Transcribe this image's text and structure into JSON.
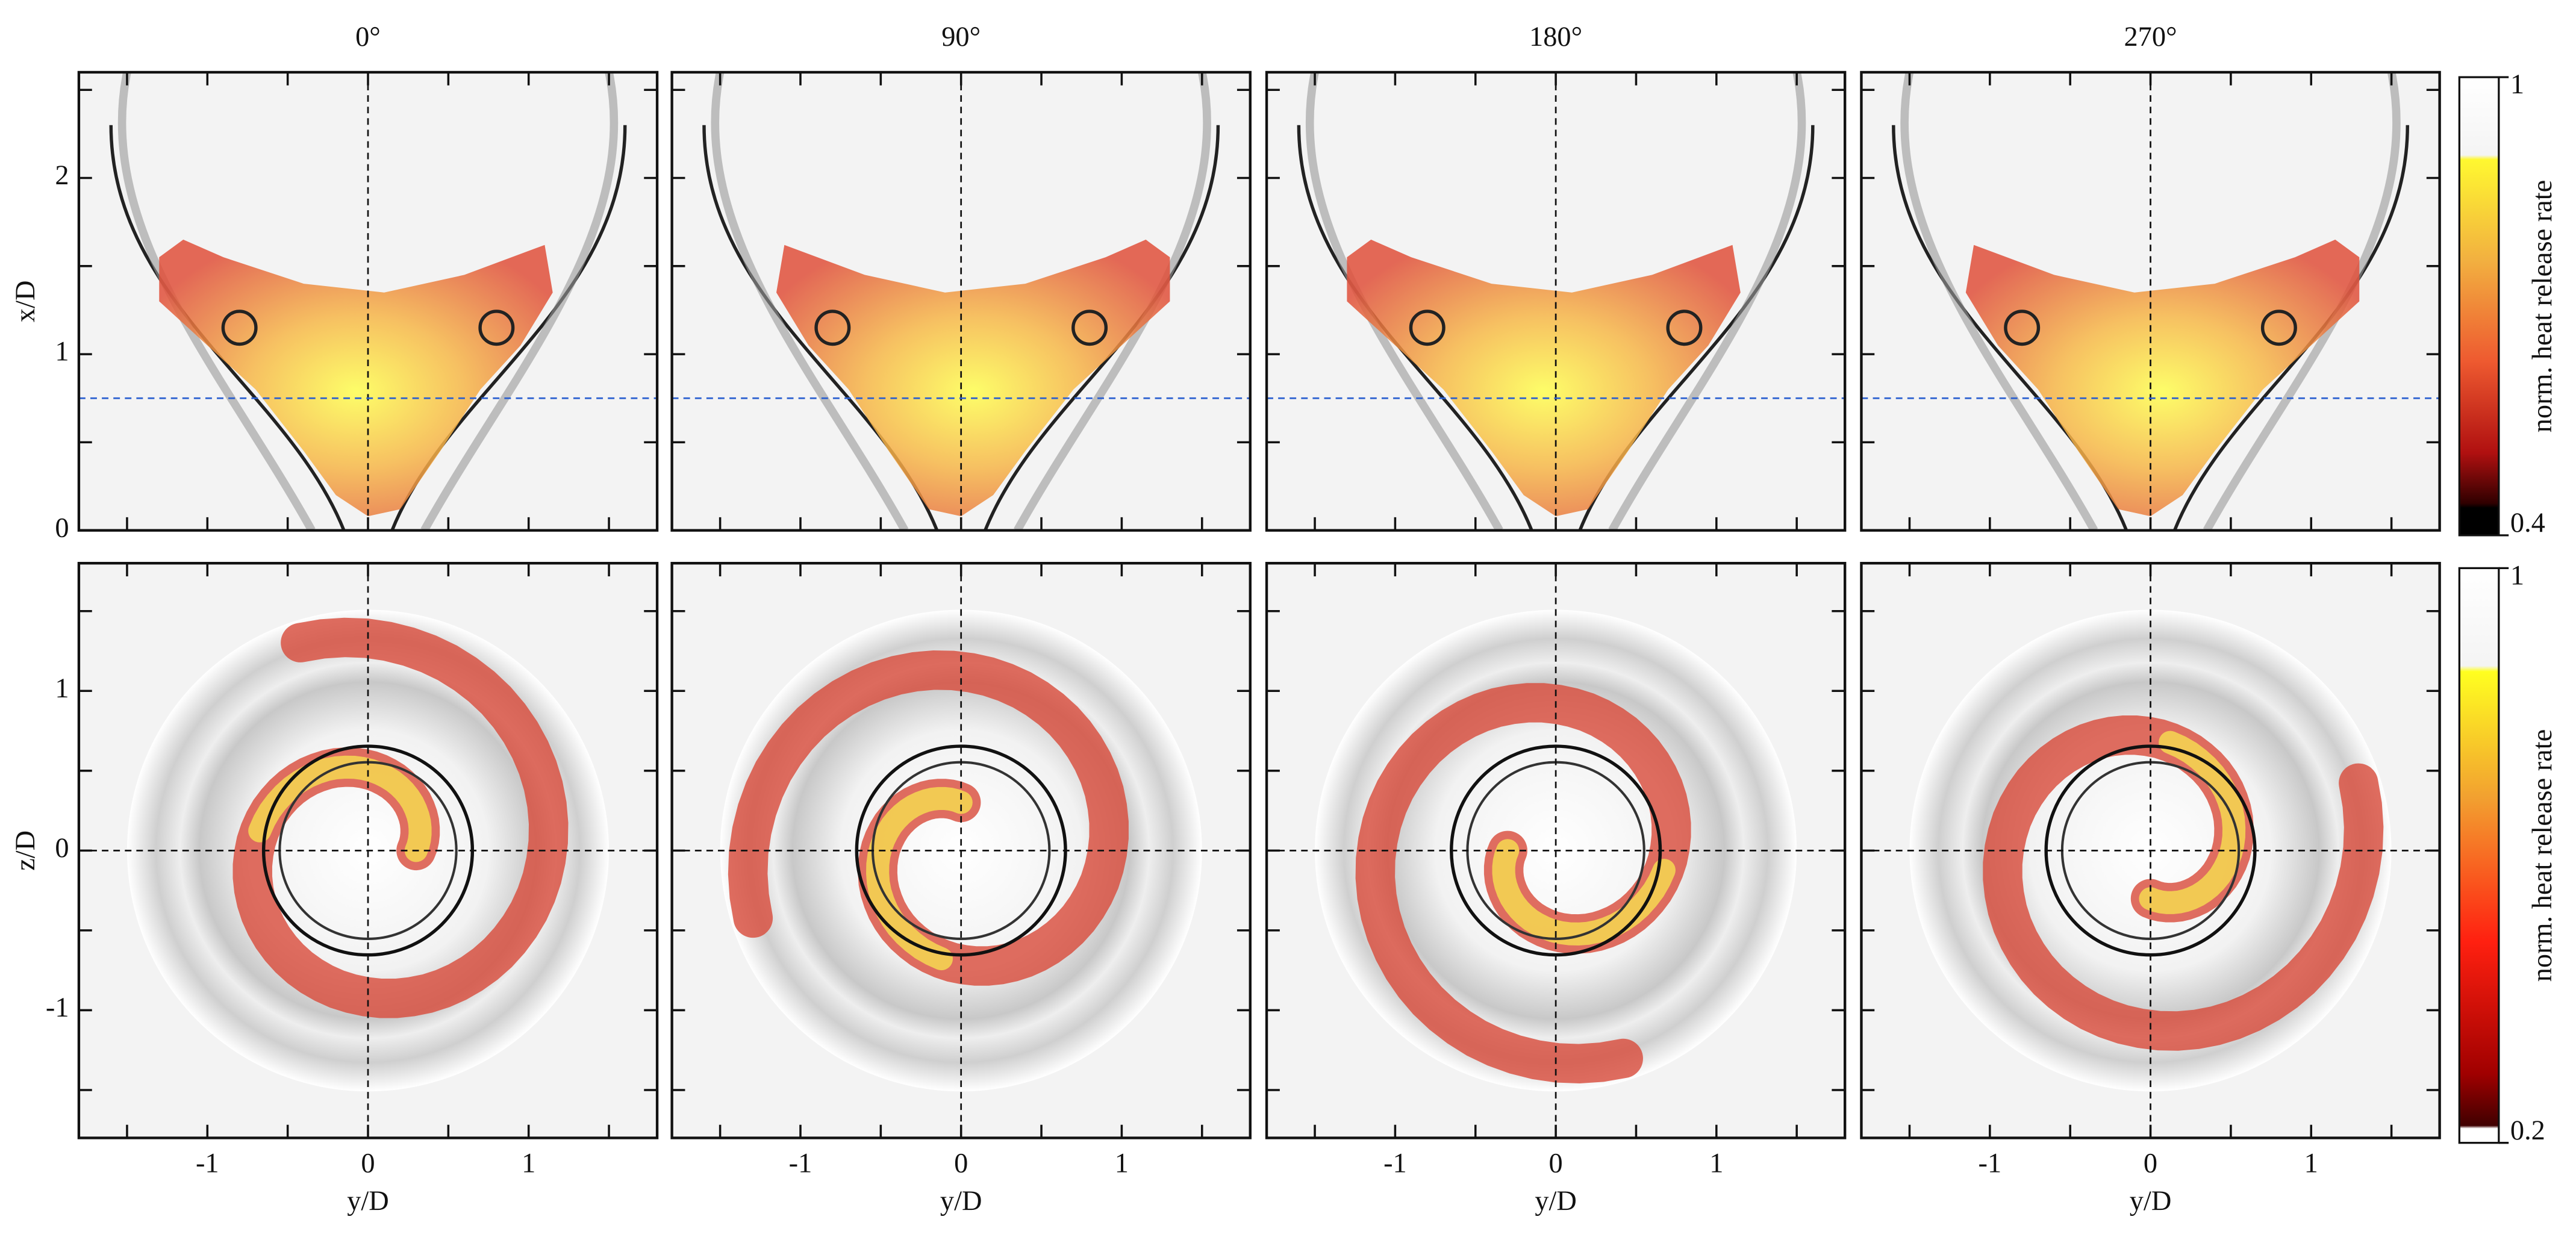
{
  "chart_data": {
    "type": "field_grid",
    "columns": [
      "0°",
      "90°",
      "180°",
      "270°"
    ],
    "xlabel": "y/D",
    "xlim": [
      -1.8,
      1.8
    ],
    "xticks": [
      -1,
      0,
      1
    ],
    "xminor": [
      -1.5,
      -0.5,
      0.5,
      1.5
    ],
    "guide_x": 0,
    "rows": [
      {
        "ylabel": "x/D",
        "ylim": [
          0,
          2.6
        ],
        "yticks": [
          0,
          1,
          2
        ],
        "yminor": [
          0.5,
          1.5,
          2.5
        ],
        "guide_y": 0.75,
        "guide_color": "#2a5fd0",
        "colorbar": {
          "label": "norm. heat release rate",
          "lim": [
            0.4,
            1
          ],
          "ticks": [
            0.4,
            1
          ]
        }
      },
      {
        "ylabel": "z/D",
        "ylim": [
          -1.8,
          1.8
        ],
        "yticks": [
          -1,
          0,
          1
        ],
        "yminor": [
          -1.5,
          -0.5,
          0.5,
          1.5
        ],
        "guide_y": 0,
        "guide_color": "#111111",
        "colorbar": {
          "label": "norm. heat release rate",
          "lim": [
            0.2,
            1
          ],
          "ticks": [
            0.2,
            1
          ]
        }
      }
    ]
  }
}
